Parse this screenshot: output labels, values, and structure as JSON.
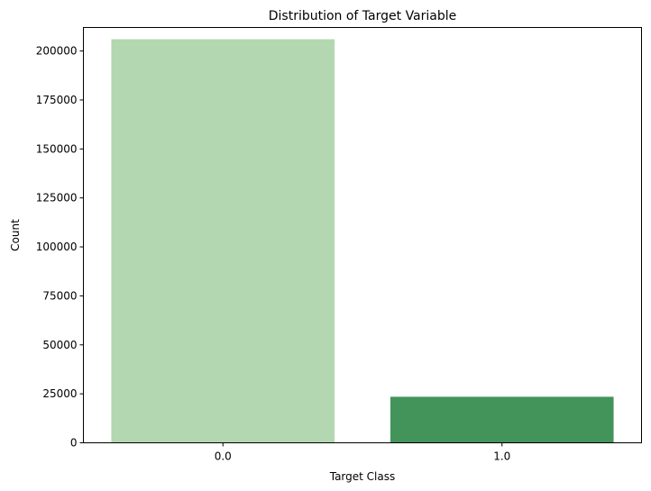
{
  "chart_data": {
    "type": "bar",
    "title": "Distribution of Target Variable",
    "xlabel": "Target Class",
    "ylabel": "Count",
    "categories": [
      "0.0",
      "1.0"
    ],
    "values": [
      206000,
      23500
    ],
    "colors": [
      "#b3d7b1",
      "#43945a"
    ],
    "ylim": [
      0,
      212000
    ],
    "yticks": [
      0,
      25000,
      50000,
      75000,
      100000,
      125000,
      150000,
      175000,
      200000
    ],
    "grid": false,
    "legend": "none"
  }
}
